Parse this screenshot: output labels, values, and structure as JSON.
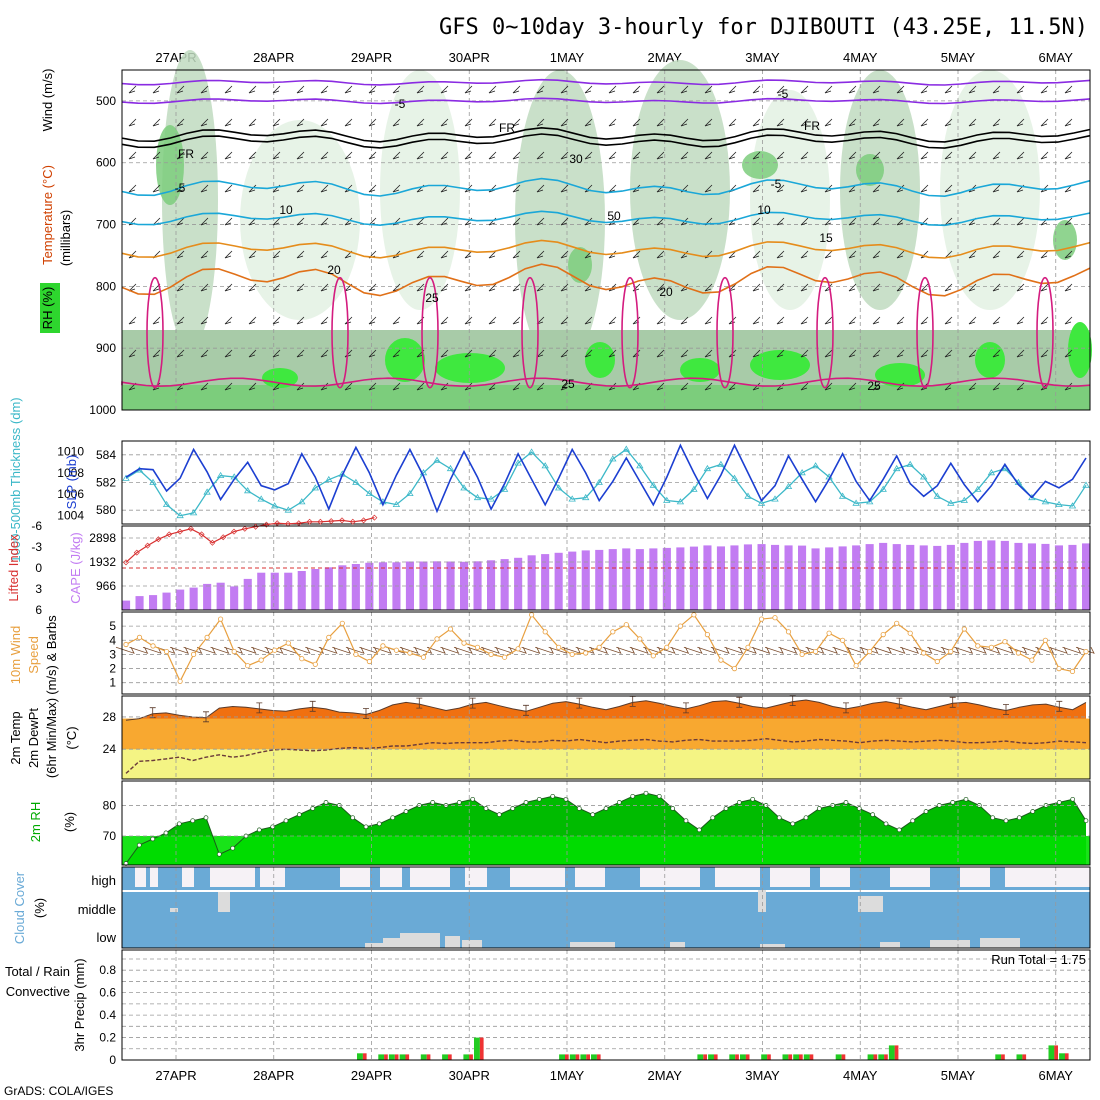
{
  "title": "GFS 0~10day 3-hourly for DJIBOUTI (43.25E, 11.5N)",
  "credit": "GrADS: COLA/IGES",
  "dates": [
    "27APR",
    "28APR",
    "29APR",
    "30APR",
    "1MAY",
    "2MAY",
    "3MAY",
    "4MAY",
    "5MAY",
    "6MAY"
  ],
  "colors": {
    "rh_light": "#e3f1e3",
    "rh_mid": "#bfdabf",
    "rh_dark": "#a8cba8",
    "rh_green": "#7ccd7c",
    "rh_bright": "#3fe83f",
    "temp_purple": "#8a2be2",
    "temp_cyan": "#1aa7d8",
    "temp_orange": "#e58c1b",
    "temp_magenta": "#d41c7f",
    "slp": "#1c3fd1",
    "thickness": "#3cb8c8",
    "li": "#d83030",
    "cape": "#c27cf2",
    "wind": "#e8a040",
    "temp_fill": "#f07010",
    "dewpt_fill": "#f8a830",
    "rh2m": "#00bb00",
    "cloud_blue": "#6aaad6",
    "precip_green": "#22cc22",
    "precip_red": "#ee3333"
  },
  "chart_data": [
    {
      "panel": "upper-air",
      "type": "heatmap",
      "ylabel_parts": [
        "Wind (m/s)",
        "Temperature (°C)",
        "RH (%)"
      ],
      "ylabel_units": "(millibars)",
      "y_ticks": [
        "500",
        "600",
        "700",
        "800",
        "900",
        "1000"
      ],
      "contour_labels": [
        "-5",
        "-5",
        "FR",
        "FR",
        "FR",
        "-5",
        "-5",
        "10",
        "10",
        "15",
        "20",
        "20",
        "25",
        "25",
        "25",
        "30",
        "50"
      ]
    },
    {
      "panel": "slp-thickness",
      "type": "line",
      "ylabel_left": "1000-500mb Thickness (dm)",
      "ylabel_right": "SLP (mb)",
      "left_ticks": [
        "584",
        "582",
        "580"
      ],
      "right_ticks": [
        "1010",
        "1008",
        "1006",
        "1004"
      ],
      "series": [
        {
          "name": "SLP",
          "values": [
            1007.6,
            1008.4,
            1008.3,
            1006.3,
            1007.5,
            1010.2,
            1008.1,
            1005.5,
            1007.4,
            1009.0,
            1006.8,
            1006.4,
            1007.0,
            1009.8,
            1007.6,
            1004.6,
            1007.8,
            1010.4,
            1008.0,
            1005.0,
            1007.8,
            1010.2,
            1007.7,
            1004.4,
            1007.4,
            1010.0,
            1007.6,
            1004.6,
            1007.0,
            1009.8,
            1007.4,
            1005.0,
            1007.5,
            1010.2,
            1008.0,
            1005.4,
            1007.2,
            1009.4,
            1007.2,
            1005.0,
            1007.6,
            1010.6,
            1008.0,
            1005.6,
            1007.8,
            1010.6,
            1008.0,
            1005.4,
            1006.8,
            1009.6,
            1007.4,
            1005.3,
            1007.4,
            1009.8,
            1007.2,
            1005.4,
            1007.4,
            1009.6,
            1007.0,
            1005.8,
            1006.8,
            1008.9,
            1006.9,
            1005.3,
            1006.8,
            1008.8,
            1006.9,
            1005.7,
            1007.2,
            1006.6,
            1007.4,
            1009.4
          ]
        },
        {
          "name": "Thickness",
          "values": [
            582.3,
            582.9,
            582.0,
            580.4,
            579.6,
            579.8,
            581.3,
            582.5,
            582.4,
            581.4,
            580.8,
            580.3,
            580.0,
            580.6,
            581.6,
            582.2,
            582.6,
            582.0,
            581.2,
            580.6,
            580.4,
            581.2,
            582.7,
            583.6,
            583.0,
            581.6,
            580.9,
            580.8,
            581.5,
            583.4,
            584.2,
            583.2,
            581.6,
            580.8,
            580.9,
            582.0,
            583.7,
            584.4,
            583.2,
            581.8,
            580.7,
            580.6,
            581.5,
            583.0,
            583.3,
            582.3,
            581.0,
            580.5,
            580.8,
            581.7,
            582.7,
            583.2,
            582.4,
            581.0,
            580.5,
            580.6,
            581.5,
            583.0,
            583.3,
            582.4,
            581.0,
            580.5,
            580.7,
            581.5,
            582.7,
            583.0,
            582.0,
            580.9,
            580.6,
            580.4,
            580.3,
            581.8
          ]
        }
      ]
    },
    {
      "panel": "stability",
      "type": "bar",
      "ylabel_left": "Lifted Index",
      "ylabel_right": "CAPE (J/kg)",
      "left_ticks": [
        "-6",
        "-3",
        "0",
        "3",
        "6"
      ],
      "right_ticks": [
        "2898",
        "1932",
        "966"
      ],
      "series": [
        {
          "name": "CAPE",
          "values": [
            380,
            560,
            600,
            700,
            820,
            900,
            1050,
            1100,
            950,
            1250,
            1500,
            1500,
            1500,
            1570,
            1650,
            1720,
            1800,
            1850,
            1900,
            1920,
            1920,
            1950,
            1950,
            1960,
            1950,
            1940,
            1960,
            2000,
            2050,
            2100,
            2200,
            2250,
            2300,
            2350,
            2400,
            2420,
            2450,
            2480,
            2450,
            2480,
            2500,
            2520,
            2550,
            2600,
            2560,
            2600,
            2640,
            2650,
            2620,
            2600,
            2590,
            2480,
            2520,
            2560,
            2600,
            2650,
            2700,
            2650,
            2620,
            2600,
            2580,
            2620,
            2700,
            2780,
            2800,
            2780,
            2700,
            2680,
            2660,
            2600,
            2620,
            2680
          ]
        },
        {
          "name": "Lifted Index",
          "values": [
            -0.8,
            -2.2,
            -3.2,
            -4.1,
            -4.8,
            -5.2,
            -5.6,
            -4.8,
            -3.6,
            -4.4,
            -5.2,
            -5.6,
            -5.9,
            -6.2,
            -6.4,
            -6.3,
            -6.4,
            -6.6,
            -6.6,
            -6.7,
            -6.8,
            -6.6,
            -6.8,
            -7.2
          ]
        }
      ]
    },
    {
      "panel": "wind10m",
      "type": "line",
      "ylabel_parts": [
        "10m Wind",
        "Speed",
        "(m/s) & Barbs"
      ],
      "y_ticks": [
        "1",
        "2",
        "3",
        "4",
        "5"
      ],
      "series": [
        {
          "name": "Speed",
          "values": [
            3.7,
            4.2,
            3.6,
            3.2,
            1.1,
            3.0,
            4.2,
            5.5,
            3.2,
            2.2,
            2.6,
            3.3,
            3.8,
            2.7,
            2.3,
            4.2,
            5.2,
            3.0,
            2.5,
            3.6,
            3.3,
            3.1,
            2.8,
            4.1,
            4.8,
            3.8,
            3.5,
            3.0,
            2.8,
            3.4,
            5.8,
            4.6,
            3.5,
            3.0,
            3.1,
            3.5,
            4.6,
            5.1,
            4.1,
            2.9,
            3.5,
            5.0,
            5.8,
            4.4,
            2.6,
            2.0,
            3.5,
            5.5,
            5.6,
            4.6,
            3.0,
            3.2,
            4.5,
            4.0,
            2.2,
            3.2,
            4.4,
            5.2,
            4.5,
            3.1,
            2.5,
            3.2,
            4.8,
            3.6,
            3.5,
            3.9,
            3.1,
            2.6,
            4.0,
            2.0,
            1.8,
            3.2
          ]
        }
      ]
    },
    {
      "panel": "temp2m",
      "type": "area",
      "ylabel_parts": [
        "2m Temp",
        "2m DewPt",
        "(6hr Min/Max)"
      ],
      "ylabel_units": "(°C)",
      "y_ticks": [
        "24",
        "28"
      ],
      "series": [
        {
          "name": "Temp",
          "values": [
            27.6,
            27.8,
            28.4,
            28.5,
            28.2,
            28.0,
            27.9,
            29.1,
            29.3,
            29.2,
            29.0,
            28.8,
            28.7,
            29.0,
            29.2,
            29.0,
            28.6,
            28.5,
            28.3,
            28.8,
            29.5,
            29.8,
            29.6,
            29.2,
            28.8,
            29.1,
            29.6,
            29.8,
            29.4,
            29.0,
            28.7,
            29.2,
            29.7,
            29.9,
            29.6,
            29.2,
            28.9,
            29.3,
            29.8,
            30.0,
            29.7,
            29.3,
            29.0,
            29.4,
            29.9,
            30.0,
            29.7,
            29.3,
            29.1,
            29.5,
            29.9,
            30.1,
            29.8,
            29.3,
            29.0,
            29.3,
            29.7,
            29.9,
            29.6,
            29.2,
            28.9,
            29.3,
            29.7,
            29.8,
            29.5,
            29.1,
            28.8,
            29.2,
            29.5,
            29.6,
            29.2,
            28.9,
            29.8
          ]
        },
        {
          "name": "DewPt",
          "values": [
            21.0,
            22.5,
            22.6,
            22.8,
            23.0,
            22.6,
            23.0,
            23.3,
            23.0,
            23.2,
            23.6,
            23.9,
            24.0,
            23.9,
            23.8,
            23.9,
            24.1,
            24.2,
            24.1,
            24.2,
            24.4,
            24.4,
            24.6,
            24.8,
            24.7,
            24.8,
            24.8,
            24.8,
            25.0,
            25.1,
            24.9,
            24.9,
            25.1,
            25.0,
            25.2,
            25.0,
            24.8,
            25.0,
            25.1,
            25.2,
            25.0,
            24.9,
            25.1,
            25.2,
            25.0,
            25.0,
            25.0,
            25.1,
            25.3,
            25.1,
            24.9,
            25.0,
            25.2,
            25.1,
            25.0,
            24.8,
            25.0,
            25.1,
            25.0,
            24.9,
            25.0,
            25.1,
            25.0,
            24.8,
            24.8,
            24.9,
            25.0,
            24.8,
            24.7,
            24.8,
            25.0,
            24.9,
            24.8
          ]
        }
      ]
    },
    {
      "panel": "rh2m",
      "type": "area",
      "ylabel": "2m RH",
      "ylabel_units": "(%)",
      "y_ticks": [
        "70",
        "80"
      ],
      "series": [
        {
          "name": "RH",
          "values": [
            61,
            67,
            69,
            71,
            74,
            75,
            76,
            64,
            66,
            70,
            72,
            73,
            75,
            77,
            79,
            81,
            80,
            76,
            73,
            74,
            76,
            78,
            80,
            81,
            80,
            81,
            82,
            79,
            77,
            79,
            81,
            82,
            83,
            82,
            79,
            77,
            79,
            81,
            83,
            84,
            83,
            79,
            75,
            72,
            76,
            79,
            81,
            82,
            80,
            76,
            74,
            76,
            79,
            80,
            81,
            79,
            77,
            74,
            72,
            75,
            78,
            80,
            81,
            82,
            80,
            76,
            75,
            76,
            78,
            80,
            81,
            82,
            75
          ]
        }
      ]
    },
    {
      "panel": "cloud",
      "type": "area",
      "ylabel": "Cloud Cover",
      "ylabel_units": "(%)",
      "levels": [
        "high",
        "middle",
        "low"
      ]
    },
    {
      "panel": "precip",
      "type": "bar",
      "ylabel_left": "Total / Rain",
      "ylabel_left2": "Convective",
      "ylabel": "3hr Precip (mm)",
      "y_ticks": [
        "0",
        "0.2",
        "0.4",
        "0.6",
        "0.8"
      ],
      "run_total": "Run Total = 1.75",
      "series": [
        {
          "name": "Total",
          "values": [
            0,
            0,
            0,
            0,
            0,
            0,
            0,
            0,
            0,
            0,
            0,
            0,
            0,
            0,
            0,
            0,
            0,
            0,
            0,
            0,
            0,
            0,
            0.06,
            0,
            0.05,
            0.05,
            0.05,
            0,
            0.05,
            0,
            0.05,
            0,
            0.05,
            0.2,
            0,
            0,
            0,
            0,
            0,
            0,
            0,
            0.05,
            0.05,
            0.05,
            0.05,
            0,
            0,
            0,
            0,
            0,
            0,
            0,
            0,
            0,
            0.05,
            0.05,
            0,
            0.05,
            0.05,
            0,
            0.05,
            0,
            0.05,
            0.05,
            0.05,
            0,
            0,
            0.05,
            0,
            0,
            0.05,
            0.05,
            0.13,
            0,
            0,
            0,
            0,
            0,
            0,
            0,
            0,
            0,
            0.05,
            0,
            0.05,
            0,
            0,
            0.13,
            0.06,
            0,
            0
          ]
        },
        {
          "name": "Convective",
          "values": [
            0,
            0,
            0,
            0,
            0,
            0,
            0,
            0,
            0,
            0,
            0,
            0,
            0,
            0,
            0,
            0,
            0,
            0,
            0,
            0,
            0,
            0,
            0.06,
            0,
            0.05,
            0.05,
            0.05,
            0,
            0.05,
            0,
            0.05,
            0,
            0.05,
            0.2,
            0,
            0,
            0,
            0,
            0,
            0,
            0,
            0.05,
            0.05,
            0.05,
            0.05,
            0,
            0,
            0,
            0,
            0,
            0,
            0,
            0,
            0,
            0.05,
            0.05,
            0,
            0.05,
            0.05,
            0,
            0.05,
            0,
            0.05,
            0.05,
            0.05,
            0,
            0,
            0.05,
            0,
            0,
            0.05,
            0.05,
            0.13,
            0,
            0,
            0,
            0,
            0,
            0,
            0,
            0,
            0,
            0.05,
            0,
            0.05,
            0,
            0,
            0.13,
            0.06,
            0,
            0
          ]
        }
      ]
    }
  ]
}
